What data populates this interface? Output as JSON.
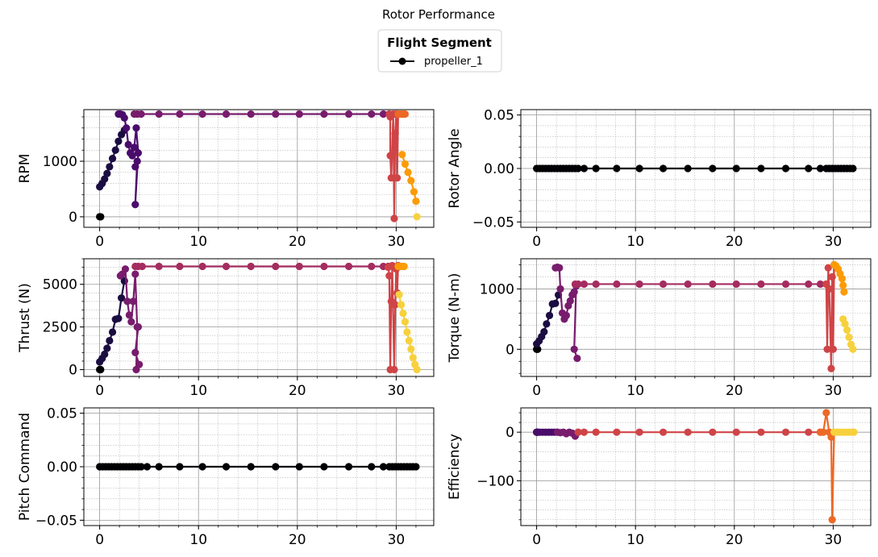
{
  "figure": {
    "title": "Rotor Performance"
  },
  "legend": {
    "title": "Flight Segment",
    "entries": [
      {
        "label": "propeller_1",
        "color": "#000000"
      }
    ]
  },
  "colors": {
    "segments": [
      "#000004",
      "#1b0c41",
      "#4a0c6b",
      "#781c6d",
      "#a52c60",
      "#cf4446",
      "#ed6925",
      "#fb9b06",
      "#f7d13d"
    ],
    "grid_major": "#9a9a9a",
    "grid_minor": "#b5b5b5"
  },
  "chart_data": [
    {
      "type": "line",
      "name": "rpm",
      "ylabel": "RPM",
      "xlim": [
        -1.6,
        33.8
      ],
      "ylim": [
        -190,
        1930
      ],
      "xticks": [
        0,
        10,
        20,
        30
      ],
      "xticklabels": [
        "0",
        "10",
        "20",
        "30"
      ],
      "yticks": [
        0,
        1000
      ],
      "yticklabels": [
        "0",
        "1000"
      ],
      "segments": [
        {
          "x": [
            0,
            0.05,
            0.1
          ],
          "y": [
            0,
            0,
            0
          ]
        },
        {
          "x": [
            0,
            0.25,
            0.5,
            0.75,
            1.0,
            1.3,
            1.6,
            1.9,
            2.2,
            2.5
          ],
          "y": [
            540,
            600,
            680,
            780,
            900,
            1050,
            1200,
            1360,
            1480,
            1560
          ]
        },
        {
          "x": [
            1.9,
            2.1,
            2.3,
            2.5,
            2.7,
            2.9,
            3.1,
            3.3,
            3.5,
            3.7,
            3.9,
            3.6,
            3.8,
            3.6
          ],
          "y": [
            1850,
            1850,
            1840,
            1780,
            1600,
            1300,
            1150,
            1100,
            1250,
            1600,
            1150,
            220,
            1000,
            900
          ]
        },
        {
          "x": [
            3.5,
            3.8,
            4.2,
            6.0,
            8.1,
            10.4,
            12.8,
            15.3,
            17.8,
            20.2,
            22.7,
            25.2,
            27.5,
            28.7,
            29.3
          ],
          "y": [
            1850,
            1850,
            1850,
            1850,
            1850,
            1850,
            1850,
            1850,
            1850,
            1850,
            1850,
            1850,
            1850,
            1850,
            1850
          ]
        },
        {
          "x": [
            29.3,
            29.4,
            29.4,
            29.5,
            29.7,
            29.8,
            29.9,
            30.0,
            30.1,
            30.2
          ],
          "y": [
            1850,
            1800,
            1100,
            700,
            1850,
            -30,
            1500,
            1850,
            700,
            1850
          ]
        },
        {
          "x": [
            30.2,
            30.4,
            30.6,
            30.8,
            30.9
          ],
          "y": [
            1850,
            1850,
            1850,
            1850,
            1850
          ]
        },
        {
          "x": [
            30.6,
            30.9,
            31.2,
            31.5,
            31.8,
            32.0
          ],
          "y": [
            1120,
            950,
            800,
            650,
            450,
            280
          ]
        },
        {
          "x": [
            32.1
          ],
          "y": [
            0
          ]
        }
      ]
    },
    {
      "type": "line",
      "name": "rotor-angle",
      "ylabel": "Rotor Angle",
      "xlim": [
        -1.6,
        33.8
      ],
      "ylim": [
        -0.055,
        0.055
      ],
      "xticks": [
        0,
        10,
        20,
        30
      ],
      "xticklabels": [
        "0",
        "10",
        "20",
        "30"
      ],
      "yticks": [
        -0.05,
        0.0,
        0.05
      ],
      "yticklabels": [
        "−0.05",
        "0.00",
        "0.05"
      ],
      "segments": [
        {
          "x": [
            0,
            0.3,
            0.6,
            0.9,
            1.2,
            1.5,
            1.8,
            2.1,
            2.4,
            2.7,
            3.0,
            3.3,
            3.6,
            3.9,
            4.2,
            4.8,
            6.0,
            8.1,
            10.4,
            12.8,
            15.3,
            17.8,
            20.2,
            22.7,
            25.2,
            27.5,
            28.7,
            29.3,
            29.6,
            29.9,
            30.2,
            30.5,
            30.8,
            31.1,
            31.4,
            31.7,
            32.0
          ],
          "y": [
            0,
            0,
            0,
            0,
            0,
            0,
            0,
            0,
            0,
            0,
            0,
            0,
            0,
            0,
            0,
            0,
            0,
            0,
            0,
            0,
            0,
            0,
            0,
            0,
            0,
            0,
            0,
            0,
            0,
            0,
            0,
            0,
            0,
            0,
            0,
            0,
            0
          ]
        }
      ]
    },
    {
      "type": "line",
      "name": "thrust",
      "ylabel": "Thrust (N)",
      "xlim": [
        -1.6,
        33.8
      ],
      "ylim": [
        -400,
        6500
      ],
      "xticks": [
        0,
        10,
        20,
        30
      ],
      "xticklabels": [
        "0",
        "10",
        "20",
        "30"
      ],
      "yticks": [
        0,
        2500,
        5000
      ],
      "yticklabels": [
        "0",
        "2500",
        "5000"
      ],
      "segments": [
        {
          "x": [
            0,
            0.05,
            0.1
          ],
          "y": [
            0,
            0,
            0
          ]
        },
        {
          "x": [
            0,
            0.25,
            0.5,
            0.75,
            1.0,
            1.3,
            1.6,
            1.9,
            2.2,
            2.5
          ],
          "y": [
            450,
            650,
            900,
            1250,
            1700,
            2200,
            2950,
            3000,
            4200,
            5200
          ]
        },
        {
          "x": [
            2.1,
            2.3,
            2.6,
            2.8,
            3.0,
            3.2,
            3.4,
            3.6,
            3.8,
            3.7,
            4.0,
            3.6,
            3.9
          ],
          "y": [
            5500,
            5600,
            5900,
            4000,
            3200,
            2800,
            4000,
            5600,
            2500,
            0,
            300,
            1000,
            2500
          ]
        },
        {
          "x": [
            3.6,
            3.9,
            4.3,
            6.0,
            8.1,
            10.4,
            12.8,
            15.3,
            17.8,
            20.2,
            22.7,
            25.2,
            27.5,
            28.7,
            29.2
          ],
          "y": [
            6050,
            6050,
            6050,
            6050,
            6050,
            6050,
            6050,
            6050,
            6050,
            6050,
            6050,
            6050,
            6050,
            6050,
            6050
          ]
        },
        {
          "x": [
            29.2,
            29.3,
            29.4,
            29.5,
            29.6,
            29.8,
            29.9,
            30.0,
            30.1,
            30.2
          ],
          "y": [
            6000,
            5500,
            0,
            4000,
            6100,
            0,
            3800,
            5900,
            4500,
            6100
          ]
        },
        {
          "x": [
            30.2,
            30.4,
            30.6,
            30.8
          ],
          "y": [
            6050,
            6050,
            6050,
            6050
          ]
        },
        {
          "x": [
            30.3,
            30.5,
            30.7,
            30.9,
            31.1,
            31.3,
            31.5,
            31.7,
            31.9,
            32.1
          ],
          "y": [
            4400,
            3800,
            3300,
            2800,
            2200,
            1700,
            1200,
            700,
            300,
            0
          ]
        }
      ]
    },
    {
      "type": "line",
      "name": "torque",
      "ylabel": "Torque (N-m)",
      "xlim": [
        -1.6,
        33.8
      ],
      "ylim": [
        -450,
        1500
      ],
      "xticks": [
        0,
        10,
        20,
        30
      ],
      "xticklabels": [
        "0",
        "10",
        "20",
        "30"
      ],
      "yticks": [
        0,
        1000
      ],
      "yticklabels": [
        "0",
        "1000"
      ],
      "segments": [
        {
          "x": [
            0,
            0.05,
            0.1
          ],
          "y": [
            0,
            0,
            0
          ]
        },
        {
          "x": [
            0,
            0.25,
            0.5,
            0.75,
            1.0,
            1.3,
            1.6,
            1.9,
            2.2
          ],
          "y": [
            90,
            140,
            210,
            290,
            420,
            560,
            750,
            760,
            900
          ]
        },
        {
          "x": [
            1.9,
            2.1,
            2.3,
            2.4,
            2.6,
            2.8,
            3.0,
            3.2,
            3.4,
            3.6,
            3.8,
            4.0,
            3.8,
            4.1
          ],
          "y": [
            1350,
            1360,
            1350,
            1000,
            600,
            500,
            560,
            720,
            800,
            900,
            950,
            1050,
            0,
            -150
          ]
        },
        {
          "x": [
            3.9,
            4.2,
            4.8,
            6.0,
            8.1,
            10.4,
            12.8,
            15.3,
            17.8,
            20.2,
            22.7,
            25.2,
            27.5,
            28.7,
            29.3
          ],
          "y": [
            1080,
            1080,
            1080,
            1080,
            1080,
            1080,
            1080,
            1080,
            1080,
            1080,
            1080,
            1080,
            1080,
            1080,
            1080
          ]
        },
        {
          "x": [
            29.3,
            29.4,
            29.5,
            29.6,
            29.8,
            29.9,
            30.0,
            30.1
          ],
          "y": [
            1080,
            0,
            1350,
            1000,
            -320,
            1200,
            0,
            1400
          ]
        },
        {
          "x": [
            30.1,
            30.3,
            30.5,
            30.7,
            30.9,
            31.0,
            31.1
          ],
          "y": [
            1400,
            1380,
            1330,
            1250,
            1170,
            1060,
            950
          ]
        },
        {
          "x": [
            31.0,
            31.2,
            31.4,
            31.6,
            31.8,
            32.0
          ],
          "y": [
            500,
            420,
            320,
            200,
            80,
            0
          ]
        }
      ]
    },
    {
      "type": "line",
      "name": "pitch-command",
      "ylabel": "Pitch Command",
      "xlim": [
        -1.6,
        33.8
      ],
      "ylim": [
        -0.055,
        0.055
      ],
      "xticks": [
        0,
        10,
        20,
        30
      ],
      "xticklabels": [
        "0",
        "10",
        "20",
        "30"
      ],
      "yticks": [
        -0.05,
        0.0,
        0.05
      ],
      "yticklabels": [
        "−0.05",
        "0.00",
        "0.05"
      ],
      "segments": [
        {
          "x": [
            0,
            0.3,
            0.6,
            0.9,
            1.2,
            1.5,
            1.8,
            2.1,
            2.4,
            2.7,
            3.0,
            3.3,
            3.6,
            3.9,
            4.2,
            4.8,
            6.0,
            8.1,
            10.4,
            12.8,
            15.3,
            17.8,
            20.2,
            22.7,
            25.2,
            27.5,
            28.7,
            29.3,
            29.6,
            29.9,
            30.2,
            30.5,
            30.8,
            31.1,
            31.4,
            31.7,
            32.0
          ],
          "y": [
            0,
            0,
            0,
            0,
            0,
            0,
            0,
            0,
            0,
            0,
            0,
            0,
            0,
            0,
            0,
            0,
            0,
            0,
            0,
            0,
            0,
            0,
            0,
            0,
            0,
            0,
            0,
            0,
            0,
            0,
            0,
            0,
            0,
            0,
            0,
            0,
            0
          ]
        }
      ]
    },
    {
      "type": "line",
      "name": "efficiency",
      "ylabel": "Efficiency",
      "xlim": [
        -1.6,
        33.8
      ],
      "ylim": [
        -192,
        50
      ],
      "xticks": [
        0,
        10,
        20,
        30
      ],
      "xticklabels": [
        "0",
        "10",
        "20",
        "30"
      ],
      "yticks": [
        -100,
        0
      ],
      "yticklabels": [
        "−100",
        "0"
      ],
      "segments": [
        {
          "x": [
            0,
            0.05,
            0.1
          ],
          "y": [
            0,
            0,
            0
          ]
        },
        {
          "x": [
            0,
            0.3,
            0.6,
            0.9,
            1.2,
            1.5,
            1.8,
            2.1
          ],
          "y": [
            0,
            0,
            0,
            0,
            0,
            0,
            0,
            0
          ]
        },
        {
          "x": [
            2.1,
            2.4,
            2.7,
            3.0,
            3.3,
            3.6,
            3.9,
            4.2
          ],
          "y": [
            0,
            -1,
            0,
            -3,
            0,
            -2,
            -8,
            0
          ]
        },
        {
          "x": [
            4.2,
            4.8,
            6.0,
            8.1,
            10.4,
            12.8,
            15.3,
            17.8,
            20.2,
            22.7,
            25.2,
            27.5,
            28.7
          ],
          "y": [
            0,
            0,
            0,
            0,
            0,
            0,
            0,
            0,
            0,
            0,
            0,
            0,
            0
          ]
        },
        {
          "x": [
            28.7,
            29.0,
            29.3,
            29.6,
            29.8,
            29.9,
            30.1
          ],
          "y": [
            0,
            0,
            40,
            0,
            -10,
            -180,
            0
          ]
        },
        {
          "x": [
            30.1,
            30.4,
            30.7,
            31.0,
            31.3,
            31.6,
            31.9,
            32.1
          ],
          "y": [
            0,
            0,
            0,
            0,
            0,
            0,
            0,
            0
          ]
        }
      ]
    }
  ]
}
